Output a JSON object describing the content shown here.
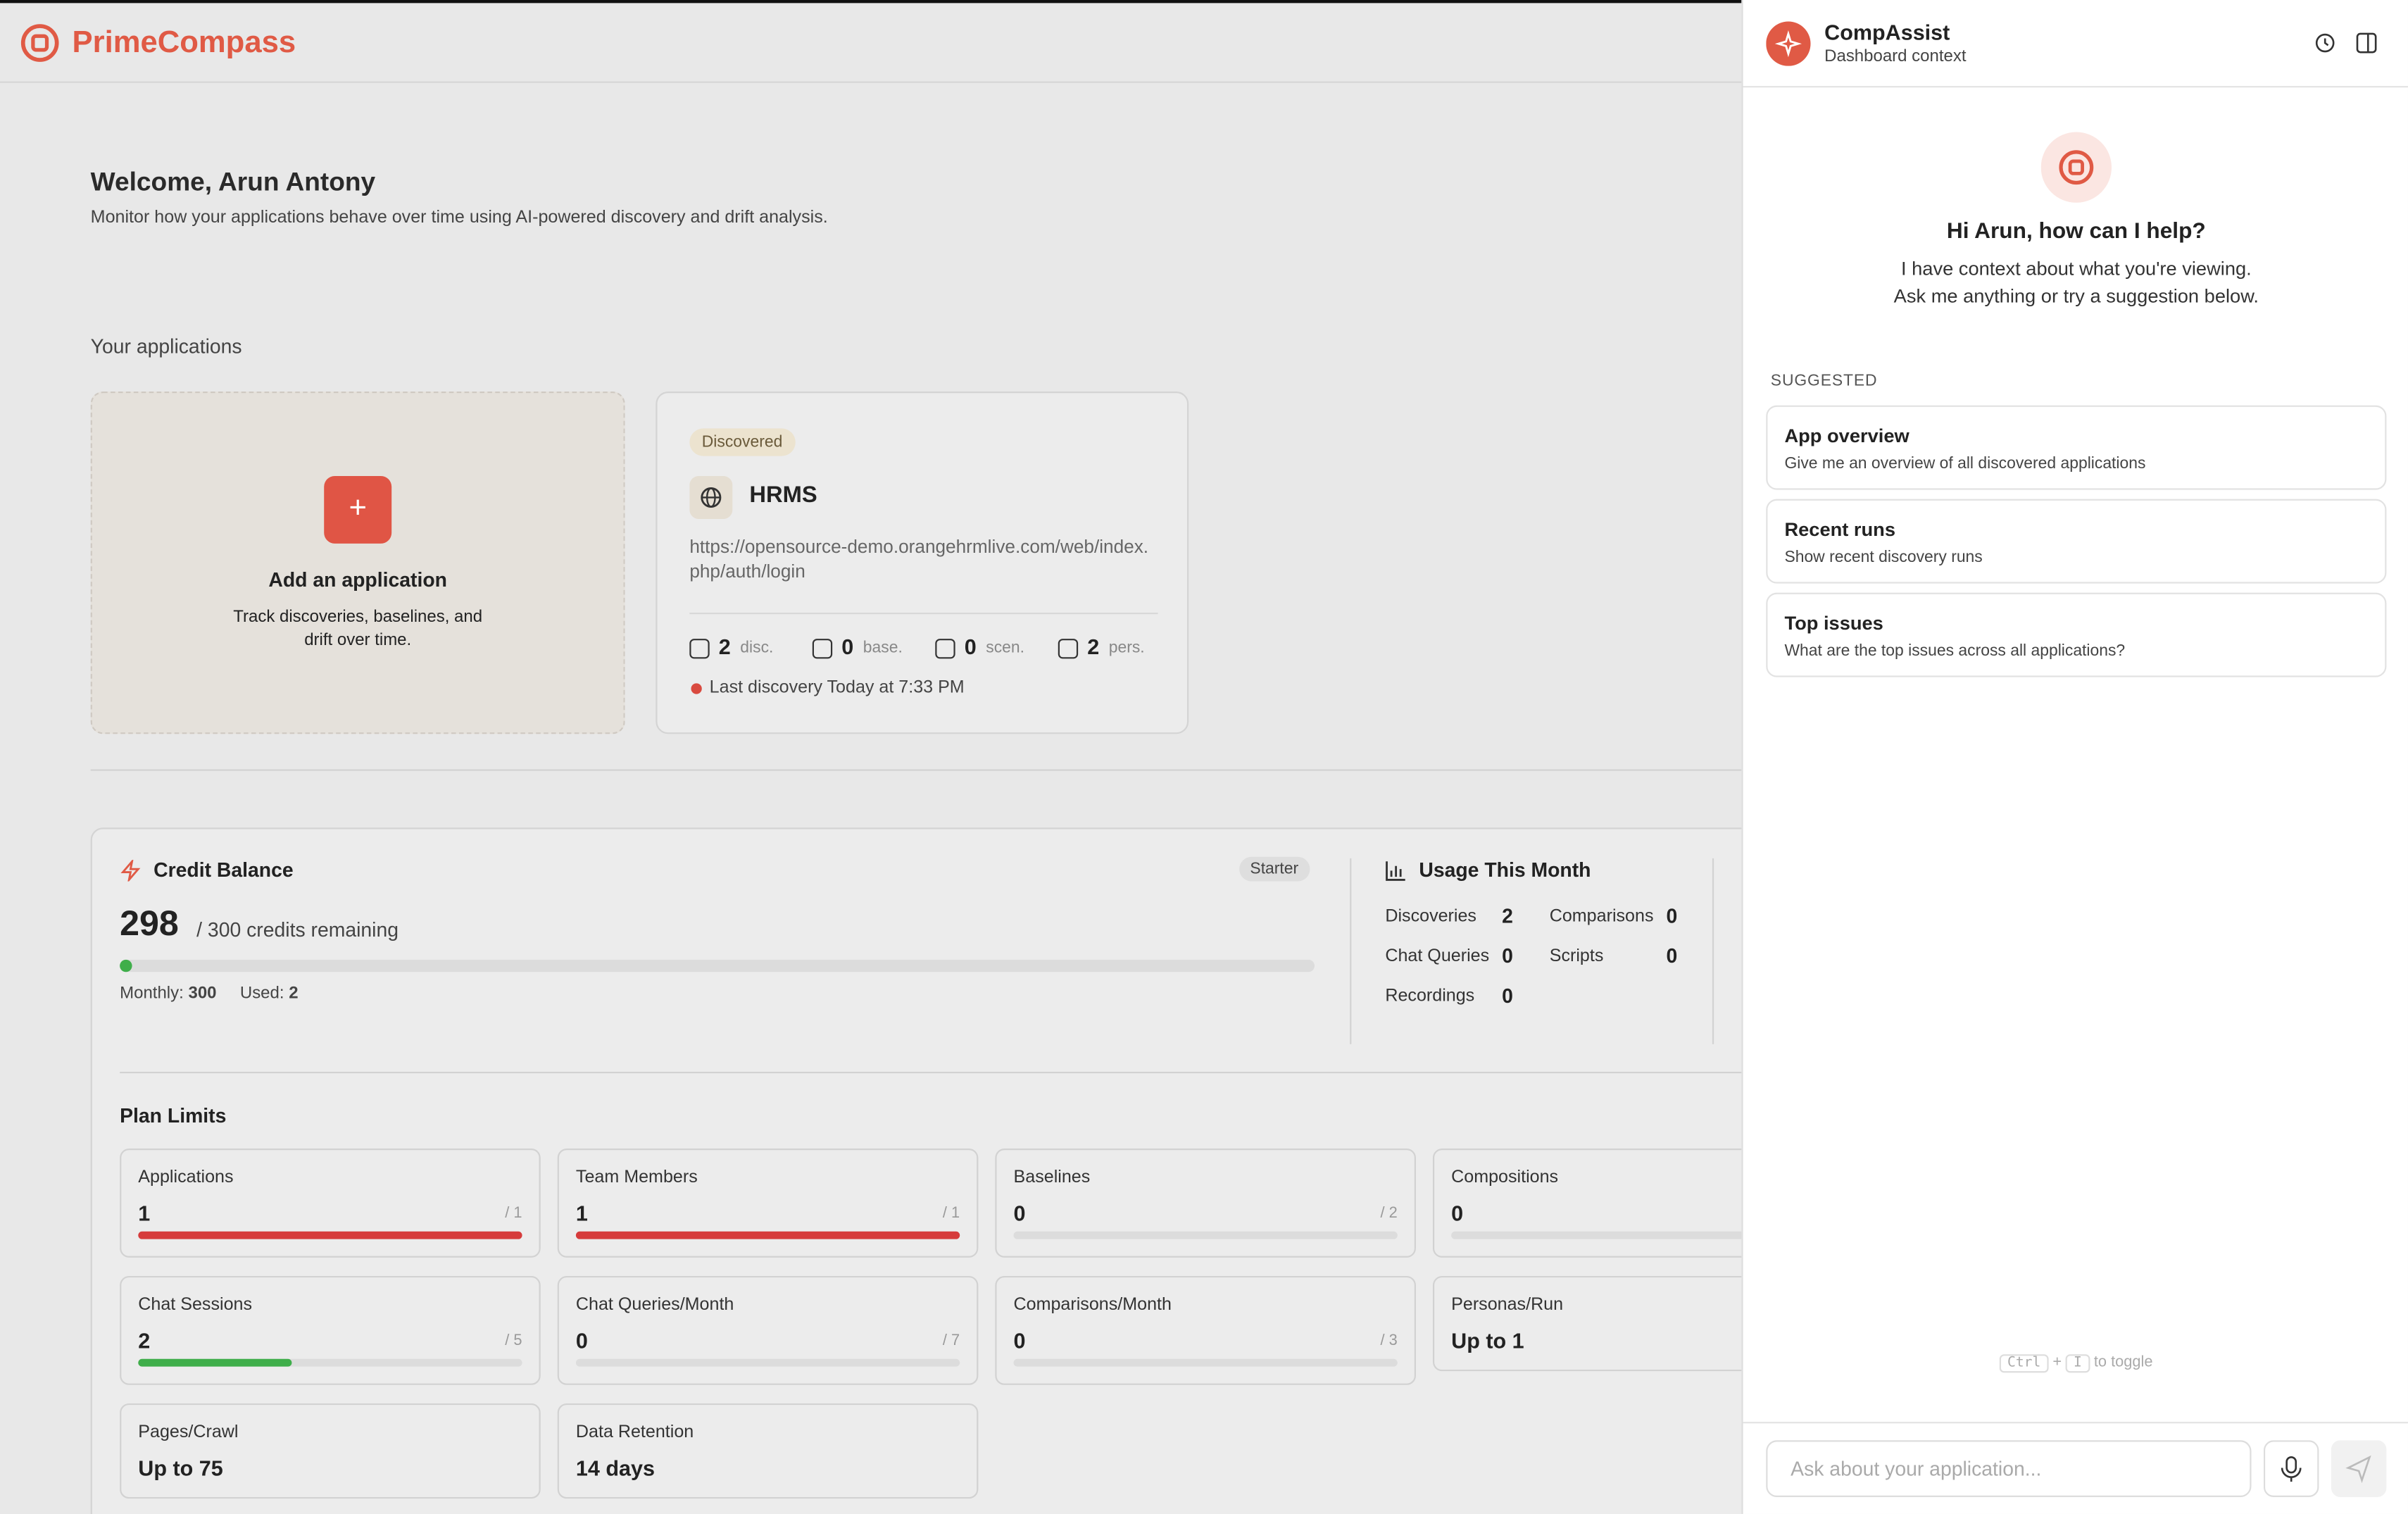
{
  "header": {
    "brand": "PrimeCompass"
  },
  "welcome": {
    "title": "Welcome, Arun Antony",
    "subtitle": "Monitor how your applications behave over time using AI-powered discovery and drift analysis."
  },
  "applications": {
    "heading": "Your applications",
    "add_card": {
      "title": "Add an application",
      "description": "Track discoveries, baselines, and drift over time."
    },
    "apps": [
      {
        "status": "Discovered",
        "name": "HRMS",
        "url": "https://opensource-demo.orangehrmlive.com/web/index.php/auth/login",
        "stats": [
          {
            "value": 2,
            "label": "disc."
          },
          {
            "value": 0,
            "label": "base."
          },
          {
            "value": 0,
            "label": "scen."
          },
          {
            "value": 2,
            "label": "pers."
          }
        ],
        "last_discovery": "Last discovery Today at 7:33 PM"
      }
    ]
  },
  "credits": {
    "title": "Credit Balance",
    "plan": "Starter",
    "balance": 298,
    "remaining": "/ 300 credits remaining",
    "monthly_label": "Monthly:",
    "monthly": 300,
    "used_label": "Used:",
    "used": 2
  },
  "usage": {
    "title": "Usage This Month",
    "items": [
      {
        "label": "Discoveries",
        "value": 2
      },
      {
        "label": "Comparisons",
        "value": 0
      },
      {
        "label": "Chat Queries",
        "value": 0
      },
      {
        "label": "Scripts",
        "value": 0
      },
      {
        "label": "Recordings",
        "value": 0
      }
    ]
  },
  "plan_limits": {
    "title": "Plan Limits",
    "items": [
      {
        "label": "Applications",
        "value": 1,
        "limit": {
          "value": 1,
          "label": "/ 1"
        },
        "color": "#d63b3b"
      },
      {
        "label": "Team Members",
        "value": 1,
        "limit": {
          "value": 1,
          "label": "/ 1"
        },
        "color": "#d63b3b"
      },
      {
        "label": "Baselines",
        "value": 0,
        "limit": {
          "value": 2,
          "label": "/ 2"
        }
      },
      {
        "label": "Compositions",
        "value": 0
      },
      {
        "label": "Chat Sessions",
        "value": 2,
        "limit": {
          "value": 5,
          "label": "/ 5"
        },
        "color": "#3fae4a"
      },
      {
        "label": "Chat Queries/Month",
        "value": 0,
        "limit": {
          "value": 7,
          "label": "/ 7"
        }
      },
      {
        "label": "Comparisons/Month",
        "value": 0,
        "limit": {
          "value": 3,
          "label": "/ 3"
        }
      },
      {
        "label": "Personas/Run",
        "value": "Up to 1"
      },
      {
        "label": "Pages/Crawl",
        "value": "Up to 75"
      },
      {
        "label": "Data Retention",
        "value": "14 days"
      }
    ]
  },
  "assistant": {
    "title": "CompAssist",
    "context": "Dashboard context",
    "greeting": "Hi Arun, how can I help?",
    "intro": "I have context about what you're viewing. Ask me anything or try a suggestion below.",
    "suggested_heading": "SUGGESTED",
    "suggestions": [
      {
        "title": "App overview",
        "description": "Give me an overview of all discovered applications"
      },
      {
        "title": "Recent runs",
        "description": "Show recent discovery runs"
      },
      {
        "title": "Top issues",
        "description": "What are the top issues across all applications?"
      }
    ],
    "shortcut": {
      "key1": "Ctrl",
      "plus": "+",
      "key2": "I",
      "hint": "to toggle"
    },
    "input_placeholder": "Ask about your application..."
  }
}
